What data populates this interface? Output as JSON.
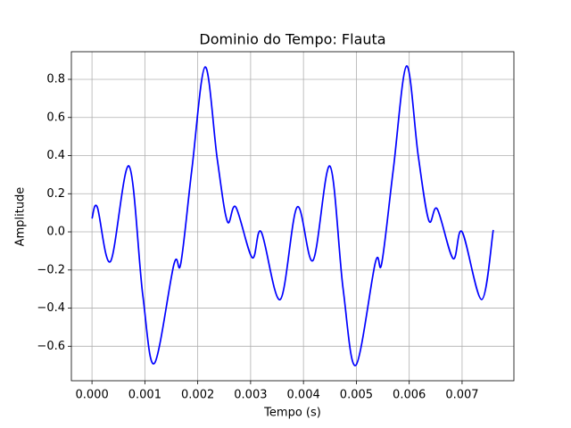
{
  "chart_data": {
    "type": "line",
    "title": "Dominio do Tempo: Flauta",
    "xlabel": "Tempo (s)",
    "ylabel": "Amplitude",
    "x": [
      0.0,
      0.0001,
      0.00035,
      0.0007,
      0.00096,
      0.00118,
      0.00155,
      0.00168,
      0.00189,
      0.00214,
      0.00237,
      0.00256,
      0.00272,
      0.00303,
      0.0032,
      0.00356,
      0.00388,
      0.00418,
      0.0045,
      0.00475,
      0.00499,
      0.00536,
      0.00548,
      0.0057,
      0.00595,
      0.00617,
      0.00637,
      0.00653,
      0.00683,
      0.007,
      0.00737,
      0.00759
    ],
    "series": [
      {
        "name": "Flauta",
        "color": "#0000ff",
        "values": [
          0.07,
          0.13,
          -0.155,
          0.345,
          -0.33,
          -0.69,
          -0.17,
          -0.165,
          0.33,
          0.865,
          0.38,
          0.055,
          0.13,
          -0.135,
          0.0,
          -0.355,
          0.13,
          -0.15,
          0.345,
          -0.3,
          -0.7,
          -0.16,
          -0.165,
          0.33,
          0.87,
          0.4,
          0.06,
          0.12,
          -0.14,
          0.0,
          -0.355,
          0.01
        ]
      }
    ],
    "xlim": [
      -0.00039,
      0.00798
    ],
    "ylim": [
      -0.781,
      0.945
    ],
    "xticks": [
      {
        "value": 0,
        "label": "0.000"
      },
      {
        "value": 0.001,
        "label": "0.001"
      },
      {
        "value": 0.002,
        "label": "0.002"
      },
      {
        "value": 0.003,
        "label": "0.003"
      },
      {
        "value": 0.004,
        "label": "0.004"
      },
      {
        "value": 0.005,
        "label": "0.005"
      },
      {
        "value": 0.006,
        "label": "0.006"
      },
      {
        "value": 0.007,
        "label": "0.007"
      }
    ],
    "yticks": [
      {
        "value": -0.6,
        "label": "−0.6"
      },
      {
        "value": -0.4,
        "label": "−0.4"
      },
      {
        "value": -0.2,
        "label": "−0.2"
      },
      {
        "value": 0,
        "label": "0.0"
      },
      0.2,
      0.4,
      0.6,
      0.8
    ],
    "grid": true
  }
}
